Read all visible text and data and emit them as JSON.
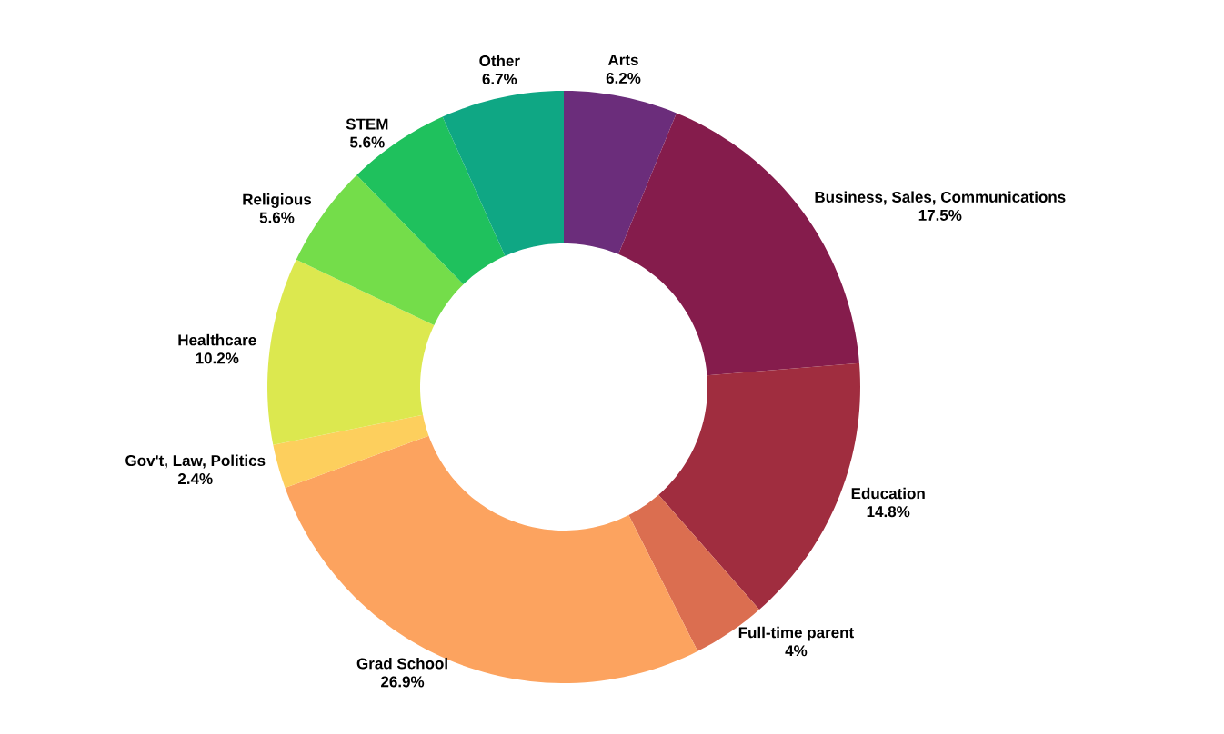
{
  "chart_data": {
    "type": "donut",
    "categories": [
      "Arts",
      "Business, Sales, Communications",
      "Education",
      "Full-time parent",
      "Grad School",
      "Gov't, Law, Politics",
      "Healthcare",
      "Religious",
      "STEM",
      "Other"
    ],
    "values": [
      6.2,
      17.5,
      14.8,
      4,
      26.9,
      2.4,
      10.2,
      5.6,
      5.6,
      6.7
    ],
    "value_labels": [
      "6.2%",
      "17.5%",
      "14.8%",
      "4%",
      "26.9%",
      "2.4%",
      "10.2%",
      "5.6%",
      "5.6%",
      "6.7%"
    ],
    "colors": [
      "#6b2d7b",
      "#851c4c",
      "#a02d3f",
      "#db6e50",
      "#fca35f",
      "#fdcf5d",
      "#dce84f",
      "#74dd4a",
      "#1fc15d",
      "#0fa784"
    ]
  }
}
